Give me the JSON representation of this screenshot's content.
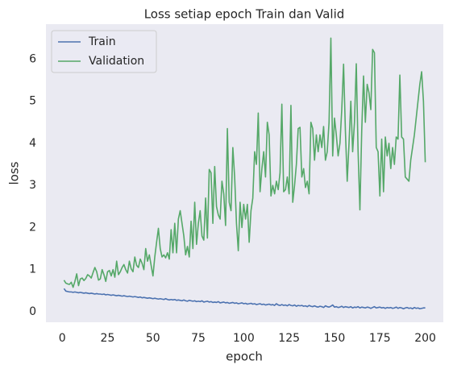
{
  "chart_data": {
    "type": "line",
    "title": "Loss setiap epoch Train dan Valid",
    "x_label": "epoch",
    "y_label": "loss",
    "x": [
      1,
      2,
      3,
      4,
      5,
      6,
      7,
      8,
      9,
      10,
      11,
      12,
      13,
      14,
      15,
      16,
      17,
      18,
      19,
      20,
      21,
      22,
      23,
      24,
      25,
      26,
      27,
      28,
      29,
      30,
      31,
      32,
      33,
      34,
      35,
      36,
      37,
      38,
      39,
      40,
      41,
      42,
      43,
      44,
      45,
      46,
      47,
      48,
      49,
      50,
      51,
      52,
      53,
      54,
      55,
      56,
      57,
      58,
      59,
      60,
      61,
      62,
      63,
      64,
      65,
      66,
      67,
      68,
      69,
      70,
      71,
      72,
      73,
      74,
      75,
      76,
      77,
      78,
      79,
      80,
      81,
      82,
      83,
      84,
      85,
      86,
      87,
      88,
      89,
      90,
      91,
      92,
      93,
      94,
      95,
      96,
      97,
      98,
      99,
      100,
      101,
      102,
      103,
      104,
      105,
      106,
      107,
      108,
      109,
      110,
      111,
      112,
      113,
      114,
      115,
      116,
      117,
      118,
      119,
      120,
      121,
      122,
      123,
      124,
      125,
      126,
      127,
      128,
      129,
      130,
      131,
      132,
      133,
      134,
      135,
      136,
      137,
      138,
      139,
      140,
      141,
      142,
      143,
      144,
      145,
      146,
      147,
      148,
      149,
      150,
      151,
      152,
      153,
      154,
      155,
      156,
      157,
      158,
      159,
      160,
      161,
      162,
      163,
      164,
      165,
      166,
      167,
      168,
      169,
      170,
      171,
      172,
      173,
      174,
      175,
      176,
      177,
      178,
      179,
      180,
      181,
      182,
      183,
      184,
      185,
      186,
      187,
      188,
      189,
      190,
      191,
      192,
      193,
      194,
      195,
      196,
      197,
      198,
      199,
      200
    ],
    "series": [
      {
        "name": "Train",
        "color": "#4c72b0",
        "values": [
          0.55,
          0.49,
          0.48,
          0.47,
          0.47,
          0.46,
          0.47,
          0.46,
          0.45,
          0.46,
          0.45,
          0.44,
          0.45,
          0.44,
          0.43,
          0.44,
          0.43,
          0.42,
          0.43,
          0.42,
          0.42,
          0.41,
          0.42,
          0.4,
          0.41,
          0.4,
          0.39,
          0.4,
          0.39,
          0.38,
          0.39,
          0.38,
          0.37,
          0.38,
          0.37,
          0.36,
          0.37,
          0.36,
          0.35,
          0.36,
          0.35,
          0.34,
          0.35,
          0.33,
          0.34,
          0.33,
          0.32,
          0.33,
          0.32,
          0.31,
          0.32,
          0.31,
          0.3,
          0.31,
          0.3,
          0.29,
          0.31,
          0.29,
          0.28,
          0.29,
          0.28,
          0.29,
          0.27,
          0.28,
          0.27,
          0.26,
          0.28,
          0.26,
          0.25,
          0.27,
          0.26,
          0.25,
          0.26,
          0.24,
          0.25,
          0.24,
          0.26,
          0.23,
          0.24,
          0.25,
          0.23,
          0.24,
          0.22,
          0.23,
          0.22,
          0.24,
          0.21,
          0.22,
          0.23,
          0.21,
          0.22,
          0.2,
          0.21,
          0.22,
          0.2,
          0.21,
          0.19,
          0.2,
          0.21,
          0.19,
          0.2,
          0.18,
          0.19,
          0.2,
          0.18,
          0.19,
          0.17,
          0.18,
          0.19,
          0.17,
          0.18,
          0.16,
          0.17,
          0.18,
          0.16,
          0.17,
          0.15,
          0.19,
          0.16,
          0.15,
          0.17,
          0.15,
          0.16,
          0.14,
          0.17,
          0.15,
          0.14,
          0.16,
          0.13,
          0.15,
          0.14,
          0.15,
          0.13,
          0.14,
          0.12,
          0.15,
          0.13,
          0.12,
          0.14,
          0.12,
          0.11,
          0.13,
          0.12,
          0.1,
          0.14,
          0.12,
          0.11,
          0.13,
          0.16,
          0.11,
          0.12,
          0.1,
          0.11,
          0.13,
          0.1,
          0.12,
          0.11,
          0.1,
          0.12,
          0.09,
          0.11,
          0.1,
          0.12,
          0.09,
          0.11,
          0.1,
          0.09,
          0.11,
          0.1,
          0.08,
          0.1,
          0.12,
          0.09,
          0.1,
          0.11,
          0.09,
          0.1,
          0.08,
          0.1,
          0.09,
          0.1,
          0.08,
          0.09,
          0.11,
          0.08,
          0.1,
          0.09,
          0.07,
          0.09,
          0.1,
          0.08,
          0.09,
          0.07,
          0.1,
          0.08,
          0.09,
          0.07,
          0.08,
          0.09,
          0.09
        ]
      },
      {
        "name": "Validation",
        "color": "#55a868",
        "values": [
          0.75,
          0.68,
          0.66,
          0.65,
          0.7,
          0.58,
          0.72,
          0.9,
          0.62,
          0.78,
          0.8,
          0.74,
          0.79,
          0.88,
          0.85,
          0.8,
          0.93,
          1.05,
          0.95,
          0.75,
          0.78,
          1.0,
          0.88,
          0.72,
          0.95,
          0.98,
          0.85,
          1.0,
          0.82,
          1.2,
          0.88,
          0.95,
          1.05,
          1.12,
          1.0,
          0.92,
          1.2,
          1.02,
          0.95,
          1.3,
          1.1,
          1.05,
          1.25,
          1.15,
          1.0,
          1.5,
          1.2,
          1.35,
          1.1,
          0.85,
          1.3,
          1.65,
          1.98,
          1.5,
          1.3,
          1.35,
          1.28,
          1.4,
          1.25,
          1.95,
          1.4,
          2.1,
          1.4,
          2.2,
          2.4,
          2.1,
          1.8,
          1.35,
          1.55,
          1.3,
          2.15,
          1.5,
          2.6,
          1.6,
          2.1,
          2.4,
          1.8,
          1.7,
          2.7,
          1.75,
          3.38,
          3.3,
          2.1,
          3.45,
          2.5,
          2.3,
          2.2,
          3.1,
          2.8,
          2.05,
          4.35,
          2.6,
          2.4,
          3.9,
          3.2,
          2.1,
          1.45,
          2.6,
          2.0,
          2.55,
          2.2,
          2.55,
          1.65,
          2.4,
          2.7,
          3.8,
          3.5,
          4.72,
          2.85,
          3.4,
          3.8,
          3.2,
          4.5,
          4.2,
          2.75,
          3.0,
          2.8,
          3.1,
          2.9,
          3.3,
          4.93,
          2.85,
          2.9,
          3.2,
          2.8,
          4.9,
          2.6,
          3.0,
          3.5,
          4.35,
          4.38,
          3.2,
          3.4,
          2.95,
          3.1,
          2.8,
          4.5,
          4.35,
          3.6,
          4.2,
          3.8,
          4.2,
          3.9,
          4.4,
          3.6,
          3.8,
          4.5,
          6.5,
          3.7,
          4.6,
          4.2,
          3.7,
          4.0,
          4.8,
          5.88,
          4.3,
          3.1,
          4.0,
          5.0,
          3.8,
          4.5,
          5.89,
          3.8,
          2.42,
          4.3,
          5.6,
          4.5,
          5.4,
          5.2,
          4.8,
          6.23,
          6.15,
          3.9,
          3.8,
          2.75,
          4.1,
          2.85,
          4.15,
          3.7,
          4.0,
          3.4,
          3.9,
          3.5,
          4.15,
          4.1,
          5.62,
          4.15,
          4.1,
          3.2,
          3.15,
          3.1,
          3.6,
          3.9,
          4.2,
          4.6,
          5.0,
          5.4,
          5.7,
          5.0,
          3.55
        ]
      }
    ],
    "xlim": [
      -8.95,
      209.95
    ],
    "xticks": [
      0,
      25,
      50,
      75,
      100,
      125,
      150,
      175,
      200
    ],
    "ylim": [
      -0.25,
      6.83
    ],
    "yticks": [
      0,
      1,
      2,
      3,
      4,
      5,
      6
    ],
    "grid": false,
    "legend": "upper left"
  }
}
